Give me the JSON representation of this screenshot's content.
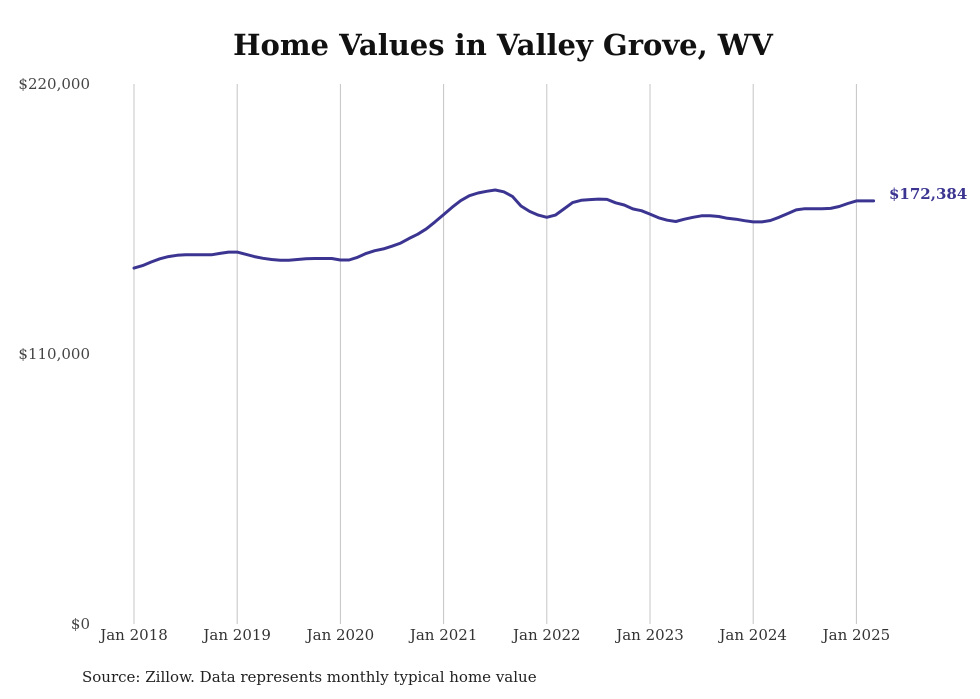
{
  "chart_data": {
    "type": "line",
    "title": "Home Values in Valley Grove, WV",
    "xlabel": "",
    "ylabel": "",
    "ylim": [
      0,
      220000
    ],
    "y_ticks": [
      {
        "value": 0,
        "label": "$0"
      },
      {
        "value": 110000,
        "label": "$110,000"
      },
      {
        "value": 220000,
        "label": "$220,000"
      }
    ],
    "x_ticks": [
      {
        "value": "2018-01",
        "label": "Jan 2018"
      },
      {
        "value": "2019-01",
        "label": "Jan 2019"
      },
      {
        "value": "2020-01",
        "label": "Jan 2020"
      },
      {
        "value": "2021-01",
        "label": "Jan 2021"
      },
      {
        "value": "2022-01",
        "label": "Jan 2022"
      },
      {
        "value": "2023-01",
        "label": "Jan 2023"
      },
      {
        "value": "2024-01",
        "label": "Jan 2024"
      },
      {
        "value": "2025-01",
        "label": "Jan 2025"
      }
    ],
    "grid": {
      "vertical": true,
      "horizontal": false
    },
    "line_color": "#3b3591",
    "end_label": "$172,384",
    "series": [
      {
        "x": [
          "2018-01",
          "2018-02",
          "2018-03",
          "2018-04",
          "2018-05",
          "2018-06",
          "2018-07",
          "2018-08",
          "2018-09",
          "2018-10",
          "2018-11",
          "2018-12",
          "2019-01",
          "2019-02",
          "2019-03",
          "2019-04",
          "2019-05",
          "2019-06",
          "2019-07",
          "2019-08",
          "2019-09",
          "2019-10",
          "2019-11",
          "2019-12",
          "2020-01",
          "2020-02",
          "2020-03",
          "2020-04",
          "2020-05",
          "2020-06",
          "2020-07",
          "2020-08",
          "2020-09",
          "2020-10",
          "2020-11",
          "2020-12",
          "2021-01",
          "2021-02",
          "2021-03",
          "2021-04",
          "2021-05",
          "2021-06",
          "2021-07",
          "2021-08",
          "2021-09",
          "2021-10",
          "2021-11",
          "2021-12",
          "2022-01",
          "2022-02",
          "2022-03",
          "2022-04",
          "2022-05",
          "2022-06",
          "2022-07",
          "2022-08",
          "2022-09",
          "2022-10",
          "2022-11",
          "2022-12",
          "2023-01",
          "2023-02",
          "2023-03",
          "2023-04",
          "2023-05",
          "2023-06",
          "2023-07",
          "2023-08",
          "2023-09",
          "2023-10",
          "2023-11",
          "2023-12",
          "2024-01",
          "2024-02",
          "2024-03",
          "2024-04",
          "2024-05",
          "2024-06",
          "2024-07",
          "2024-08",
          "2024-09",
          "2024-10",
          "2024-11",
          "2024-12",
          "2025-01",
          "2025-02",
          "2025-03"
        ],
        "y": [
          145000,
          146000,
          147500,
          148800,
          149700,
          150200,
          150400,
          150400,
          150400,
          150400,
          151000,
          151500,
          151500,
          150600,
          149700,
          149000,
          148500,
          148200,
          148200,
          148500,
          148800,
          148900,
          148900,
          148900,
          148300,
          148300,
          149400,
          151000,
          152100,
          152800,
          153900,
          155200,
          157100,
          158800,
          161000,
          163800,
          166800,
          169800,
          172500,
          174500,
          175600,
          176300,
          176800,
          176100,
          174200,
          170300,
          168100,
          166600,
          165700,
          166600,
          169100,
          171700,
          172600,
          172900,
          173100,
          173000,
          171600,
          170700,
          169100,
          168400,
          167000,
          165500,
          164500,
          164000,
          164900,
          165700,
          166300,
          166300,
          166000,
          165300,
          164900,
          164300,
          163800,
          163800,
          164400,
          165700,
          167200,
          168700,
          169200,
          169200,
          169200,
          169300,
          170100,
          171300,
          172384,
          172384,
          172384
        ]
      }
    ]
  },
  "source_note": "Source: Zillow. Data represents monthly typical home value"
}
